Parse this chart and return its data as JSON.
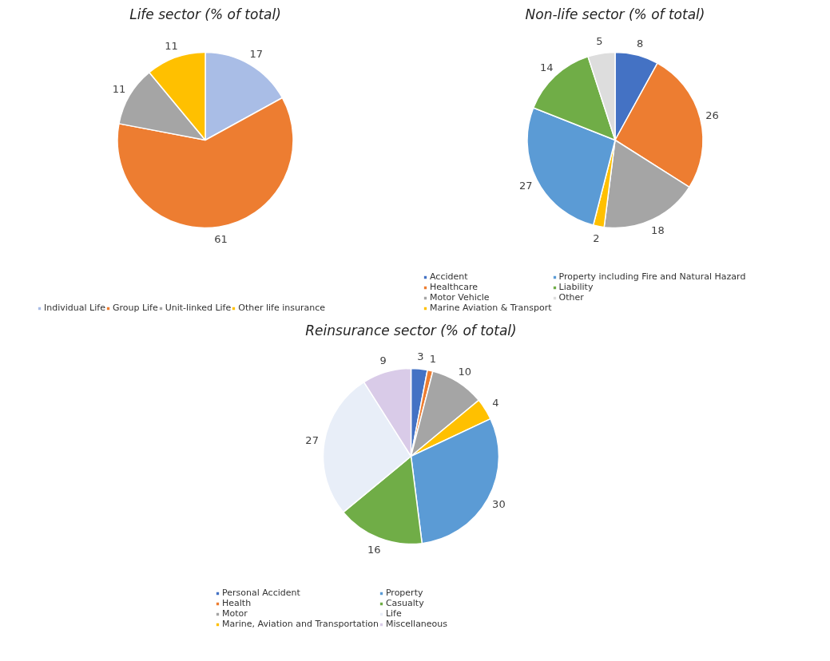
{
  "chart_data": [
    {
      "type": "pie",
      "title": "Life sector (% of total)",
      "categories": [
        "Individual Life",
        "Group Life",
        "Unit-linked Life",
        "Other life insurance"
      ],
      "values": [
        17,
        61,
        11,
        11
      ],
      "colors": [
        "#a9bde6",
        "#ed7d31",
        "#a5a5a5",
        "#ffc000"
      ],
      "data_labels": true,
      "legend": "bottom"
    },
    {
      "type": "pie",
      "title": "Non-life sector (% of total)",
      "categories": [
        "Accident",
        "Healthcare",
        "Motor Vehicle",
        "Marine Aviation & Transport",
        "Property including Fire and Natural Hazard",
        "Liability",
        "Other"
      ],
      "values": [
        8,
        26,
        18,
        2,
        27,
        14,
        5
      ],
      "colors": [
        "#4472c4",
        "#ed7d31",
        "#a5a5a5",
        "#ffc000",
        "#5b9bd5",
        "#70ad47",
        "#dddddd"
      ],
      "data_labels": true,
      "legend": "bottom"
    },
    {
      "type": "pie",
      "title": "Reinsurance sector (% of total)",
      "categories": [
        "Personal Accident",
        "Health",
        "Motor",
        "Marine, Aviation and Transportation",
        "Property",
        "Casualty",
        "Life",
        "Miscellaneous"
      ],
      "values": [
        3,
        1,
        10,
        4,
        30,
        16,
        27,
        9
      ],
      "colors": [
        "#4472c4",
        "#ed7d31",
        "#a5a5a5",
        "#ffc000",
        "#5b9bd5",
        "#70ad47",
        "#e8eef8",
        "#d9cbe8"
      ],
      "data_labels": true,
      "legend": "bottom"
    }
  ]
}
